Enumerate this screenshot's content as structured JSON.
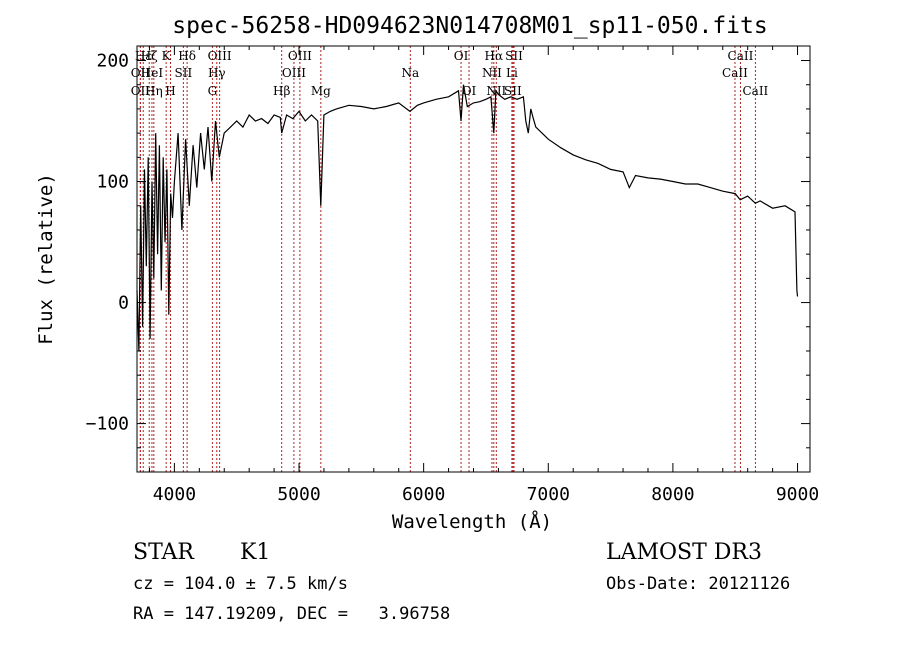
{
  "chart_data": {
    "type": "line",
    "title": "spec-56258-HD094623N014708M01_sp11-050.fits",
    "xlabel": "Wavelength (Å)",
    "ylabel": "Flux (relative)",
    "xlim": [
      3700,
      9100
    ],
    "ylim": [
      -140,
      212
    ],
    "xticks": [
      4000,
      5000,
      6000,
      7000,
      8000,
      9000
    ],
    "yticks": [
      -100,
      0,
      100,
      200
    ],
    "grid": false,
    "series": [
      {
        "name": "spectrum",
        "x": [
          3700,
          3715,
          3730,
          3745,
          3760,
          3775,
          3790,
          3805,
          3820,
          3835,
          3850,
          3865,
          3880,
          3895,
          3910,
          3925,
          3940,
          3955,
          3970,
          3985,
          4000,
          4030,
          4060,
          4090,
          4120,
          4150,
          4180,
          4210,
          4240,
          4270,
          4300,
          4330,
          4360,
          4400,
          4450,
          4500,
          4550,
          4600,
          4650,
          4700,
          4750,
          4800,
          4850,
          4861,
          4900,
          4950,
          5000,
          5050,
          5100,
          5150,
          5175,
          5200,
          5250,
          5300,
          5400,
          5500,
          5600,
          5700,
          5800,
          5890,
          5950,
          6000,
          6100,
          6200,
          6280,
          6300,
          6320,
          6350,
          6400,
          6450,
          6500,
          6540,
          6563,
          6580,
          6600,
          6650,
          6700,
          6750,
          6800,
          6820,
          6840,
          6860,
          6880,
          6900,
          6950,
          7000,
          7100,
          7200,
          7300,
          7400,
          7500,
          7600,
          7650,
          7700,
          7800,
          7900,
          8000,
          8100,
          8200,
          8300,
          8400,
          8500,
          8540,
          8600,
          8662,
          8700,
          8800,
          8900,
          8980,
          8995,
          9000
        ],
        "values": [
          10,
          -40,
          80,
          -20,
          110,
          30,
          120,
          -30,
          100,
          20,
          140,
          40,
          130,
          10,
          120,
          50,
          110,
          -10,
          90,
          70,
          100,
          140,
          60,
          135,
          80,
          130,
          95,
          140,
          110,
          145,
          100,
          150,
          120,
          140,
          145,
          150,
          145,
          155,
          150,
          152,
          148,
          155,
          153,
          140,
          155,
          152,
          158,
          150,
          155,
          150,
          80,
          155,
          158,
          160,
          163,
          162,
          160,
          162,
          165,
          158,
          163,
          165,
          168,
          170,
          175,
          150,
          180,
          162,
          165,
          166,
          168,
          170,
          140,
          175,
          172,
          168,
          170,
          168,
          170,
          150,
          140,
          160,
          152,
          145,
          140,
          135,
          128,
          122,
          118,
          115,
          110,
          108,
          95,
          105,
          103,
          102,
          100,
          98,
          98,
          95,
          92,
          90,
          85,
          88,
          82,
          84,
          78,
          80,
          75,
          10,
          5
        ]
      }
    ],
    "line_ids": [
      {
        "label": "Hε",
        "wave": 3750,
        "row": 1
      },
      {
        "label": "OII",
        "wave": 3727,
        "row": 2
      },
      {
        "label": "OII",
        "wave": 3727,
        "row": 3
      },
      {
        "label": "Hζ",
        "wave": 3798,
        "row": 1
      },
      {
        "label": "HeI",
        "wave": 3820,
        "row": 2
      },
      {
        "label": "Hη",
        "wave": 3835,
        "row": 3
      },
      {
        "label": "K",
        "wave": 3934,
        "row": 1
      },
      {
        "label": "SII",
        "wave": 4072,
        "row": 2
      },
      {
        "label": "H",
        "wave": 3969,
        "row": 3
      },
      {
        "label": "Hδ",
        "wave": 4102,
        "row": 1
      },
      {
        "label": "OIII",
        "wave": 4363,
        "row": 1
      },
      {
        "label": "Hγ",
        "wave": 4340,
        "row": 2
      },
      {
        "label": "G",
        "wave": 4305,
        "row": 3
      },
      {
        "label": "Hβ",
        "wave": 4861,
        "row": 3
      },
      {
        "label": "OIII",
        "wave": 5007,
        "row": 1
      },
      {
        "label": "OIII",
        "wave": 4959,
        "row": 2
      },
      {
        "label": "Mg",
        "wave": 5175,
        "row": 3
      },
      {
        "label": "Na",
        "wave": 5893,
        "row": 2
      },
      {
        "label": "OI",
        "wave": 6300,
        "row": 1
      },
      {
        "label": "OI",
        "wave": 6364,
        "row": 3
      },
      {
        "label": "Hα",
        "wave": 6563,
        "row": 1
      },
      {
        "label": "SII",
        "wave": 6725,
        "row": 1
      },
      {
        "label": "NII",
        "wave": 6548,
        "row": 2
      },
      {
        "label": "Li",
        "wave": 6708,
        "row": 2
      },
      {
        "label": "NII",
        "wave": 6583,
        "row": 3
      },
      {
        "label": "SII",
        "wave": 6716,
        "row": 3
      },
      {
        "label": "CaII",
        "wave": 8542,
        "row": 1
      },
      {
        "label": "CaII",
        "wave": 8498,
        "row": 2
      },
      {
        "label": "CaII",
        "wave": 8662,
        "row": 3
      }
    ]
  },
  "info": {
    "class": "STAR",
    "subclass": "K1",
    "survey": "LAMOST DR3",
    "cz": "cz = 104.0 ± 7.5 km/s",
    "obs_date": "Obs-Date: 20121126",
    "radec": "RA = 147.19209, DEC =   3.96758"
  }
}
